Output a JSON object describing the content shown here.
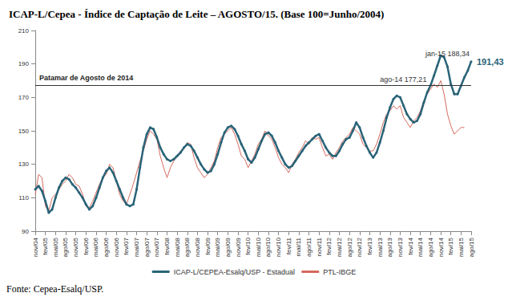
{
  "chart_data": {
    "type": "line",
    "title": "ICAP-L/Cepea - Índice de Captação de Leite – AGOSTO/15. (Base 100=Junho/2004)",
    "source": "Fonte: Cepea-Esalq/USP.",
    "categories": [
      "nov/04",
      null,
      null,
      "fev/05",
      null,
      null,
      "mai/05",
      null,
      null,
      "ago/05",
      null,
      null,
      "nov/05",
      null,
      null,
      "fev/06",
      null,
      null,
      "mai/06",
      null,
      null,
      "ago/06",
      null,
      null,
      "nov/06",
      null,
      null,
      "fev/07",
      null,
      null,
      "mai/07",
      null,
      null,
      "ago/07",
      null,
      null,
      "nov/07",
      null,
      null,
      "fev/08",
      null,
      null,
      "mai/08",
      null,
      null,
      "ago/08",
      null,
      null,
      "nov/08",
      null,
      null,
      "fev/09",
      null,
      null,
      "mai/09",
      null,
      null,
      "ago/09",
      null,
      null,
      "nov/09",
      null,
      null,
      "fev/10",
      null,
      null,
      "mai/10",
      null,
      null,
      "ago/10",
      null,
      null,
      "nov/10",
      null,
      null,
      "fev/11",
      null,
      null,
      "mai/11",
      null,
      null,
      "ago/11",
      null,
      null,
      "nov/11",
      null,
      null,
      "fev/12",
      null,
      null,
      "mai/12",
      null,
      null,
      "ago/12",
      null,
      null,
      "nov/12",
      null,
      null,
      "fev/13",
      null,
      null,
      "mai/13",
      null,
      null,
      "ago/13",
      null,
      null,
      "nov/13",
      null,
      null,
      "fev/14",
      null,
      null,
      "mai/14",
      null,
      null,
      "ago/14",
      null,
      null,
      "nov/14",
      null,
      null,
      "fev/15",
      null,
      null,
      "mai/15",
      null,
      null,
      "ago/15"
    ],
    "series": [
      {
        "name": "ICAP-L/CEPEA-Esalq/USP - Estadual",
        "color": "#2a6478",
        "marker": "circle",
        "line_style": "solid",
        "values": [
          115,
          117,
          114,
          108,
          101,
          103,
          110,
          116,
          120,
          122,
          121,
          118,
          116,
          113,
          110,
          106,
          103,
          105,
          110,
          116,
          122,
          126,
          128,
          125,
          120,
          115,
          110,
          106,
          105,
          106,
          115,
          128,
          140,
          148,
          152,
          151,
          146,
          140,
          136,
          133,
          132,
          133,
          135,
          137,
          140,
          142,
          141,
          138,
          134,
          130,
          127,
          125,
          126,
          130,
          136,
          143,
          149,
          152,
          153,
          151,
          147,
          142,
          138,
          133,
          131,
          134,
          139,
          144,
          148,
          149,
          147,
          143,
          138,
          134,
          130,
          128,
          129,
          132,
          135,
          138,
          141,
          143,
          145,
          147,
          148,
          144,
          140,
          137,
          135,
          135,
          138,
          142,
          145,
          146,
          150,
          155,
          152,
          146,
          141,
          137,
          134,
          137,
          143,
          150,
          158,
          164,
          169,
          171,
          170,
          165,
          160,
          157,
          155,
          156,
          160,
          167,
          173,
          177.21,
          183,
          189,
          195,
          194,
          188.34,
          178,
          172,
          172,
          177,
          182,
          186,
          191.43
        ]
      },
      {
        "name": "PTL-IBGE",
        "color": "#d46a5e",
        "marker": "none",
        "line_style": "solid",
        "values": [
          112,
          124,
          122,
          105,
          102,
          110,
          112,
          115,
          118,
          120,
          124,
          122,
          118,
          117,
          112,
          105,
          104,
          108,
          113,
          118,
          122,
          124,
          130,
          128,
          120,
          112,
          108,
          106,
          112,
          118,
          125,
          132,
          138,
          145,
          150,
          148,
          145,
          135,
          128,
          122,
          128,
          132,
          135,
          138,
          140,
          143,
          142,
          134,
          128,
          125,
          122,
          124,
          128,
          132,
          140,
          146,
          148,
          150,
          152,
          148,
          142,
          135,
          133,
          128,
          132,
          136,
          142,
          145,
          150,
          147,
          145,
          140,
          134,
          130,
          128,
          125,
          130,
          133,
          137,
          140,
          144,
          142,
          146,
          145,
          146,
          140,
          135,
          136,
          133,
          137,
          140,
          144,
          146,
          148,
          152,
          150,
          148,
          142,
          140,
          138,
          138,
          142,
          148,
          155,
          160,
          162,
          165,
          163,
          165,
          158,
          155,
          152,
          156,
          158,
          162,
          168,
          172,
          175,
          178,
          176,
          180,
          172,
          160,
          153,
          148,
          150,
          152,
          152,
          null,
          null
        ]
      }
    ],
    "annotations": [
      {
        "text": "Patamar de Agosto de 2014",
        "y": 177.21
      },
      {
        "text": "ago-14 177,21",
        "x_index": 117,
        "y": 177.21
      },
      {
        "text": "jan-15 188,34",
        "x_index": 122,
        "y": 188.34
      },
      {
        "text": "191,43",
        "x_index": 129,
        "y": 191.43
      }
    ],
    "ylim": [
      90,
      210
    ],
    "yticks": [
      90,
      110,
      130,
      150,
      170,
      190,
      210
    ],
    "grid": false,
    "legend": "bottom"
  }
}
